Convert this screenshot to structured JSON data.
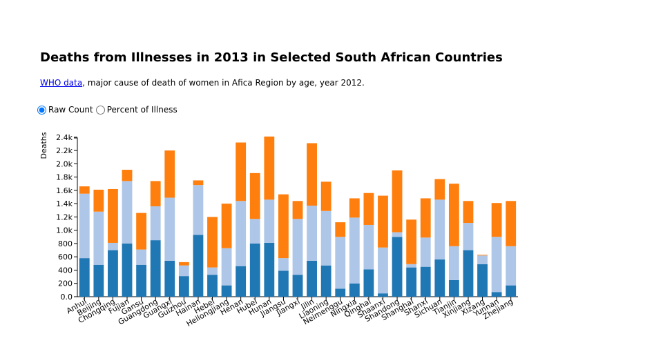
{
  "title": "Deaths from Illnesses in 2013 in Selected South African Countries",
  "subtitle": {
    "link_text": "WHO data",
    "text": ", major cause of death of women in Afica Region by age, year 2012."
  },
  "controls": {
    "options": [
      {
        "label": "Raw Count",
        "checked": true
      },
      {
        "label": "Percent of Illness",
        "checked": false
      }
    ]
  },
  "colors": {
    "series1": "#1f77b4",
    "series2": "#aec7e8",
    "series3": "#ff7f0e"
  },
  "chart_data": {
    "type": "bar",
    "stacked": true,
    "ylabel": "Deaths",
    "ylim": [
      0,
      2450
    ],
    "yticks": [
      "0.0",
      "200",
      "400",
      "600",
      "800",
      "1.0k",
      "1.2k",
      "1.4k",
      "1.6k",
      "1.8k",
      "2.0k",
      "2.2k",
      "2.4k"
    ],
    "ytick_values": [
      0,
      200,
      400,
      600,
      800,
      1000,
      1200,
      1400,
      1600,
      1800,
      2000,
      2200,
      2400
    ],
    "categories": [
      "Anhui",
      "Beijing",
      "Chongqing",
      "Fujian",
      "Gansu",
      "Guangdong",
      "Guangxi",
      "Guizhou",
      "Hainan",
      "Hebei",
      "Heilongjiang",
      "Henan",
      "Hubei",
      "Hunan",
      "Jiangsu",
      "Jiangxi",
      "Jilin",
      "Liaoning",
      "Neimenggu",
      "Ningxia",
      "Qinghai",
      "Shaanxi",
      "Shandong",
      "Shanghai",
      "Shanxi",
      "Sichuan",
      "Tianjin",
      "Xinjiang",
      "Xizang",
      "Yunnan",
      "Zhejiang"
    ],
    "series": [
      {
        "values": [
          580,
          480,
          700,
          800,
          480,
          850,
          540,
          310,
          930,
          330,
          170,
          460,
          800,
          810,
          390,
          330,
          540,
          470,
          120,
          200,
          410,
          50,
          900,
          440,
          450,
          560,
          250,
          700,
          490,
          70,
          170
        ]
      },
      {
        "values": [
          970,
          800,
          110,
          940,
          230,
          510,
          950,
          160,
          750,
          110,
          560,
          980,
          370,
          650,
          190,
          840,
          830,
          820,
          780,
          990,
          670,
          690,
          70,
          50,
          440,
          900,
          510,
          410,
          130,
          830,
          590
        ]
      },
      {
        "values": [
          110,
          330,
          810,
          170,
          550,
          380,
          710,
          50,
          70,
          760,
          670,
          880,
          690,
          950,
          960,
          270,
          940,
          440,
          220,
          290,
          480,
          780,
          930,
          670,
          590,
          310,
          940,
          330,
          10,
          510,
          680
        ]
      }
    ]
  }
}
